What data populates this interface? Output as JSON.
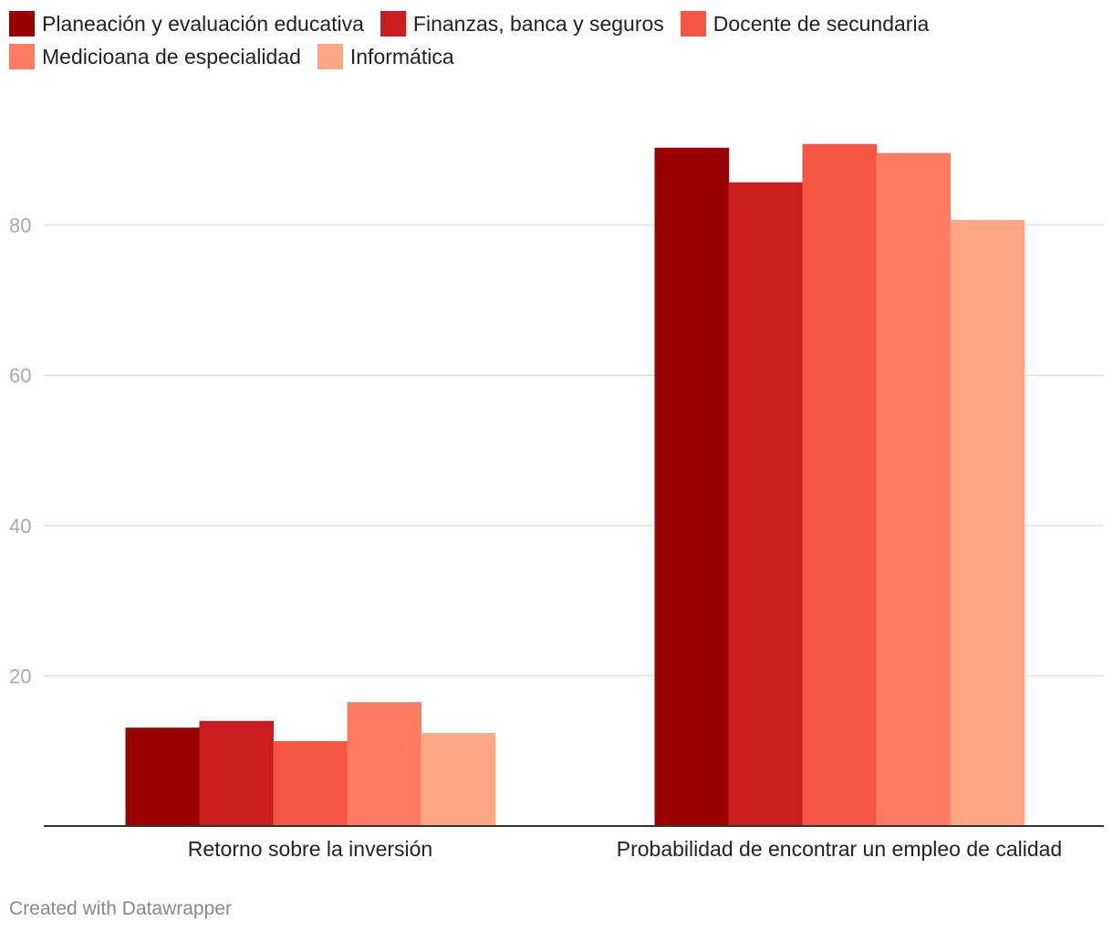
{
  "chart_data": {
    "type": "bar",
    "categories": [
      "Retorno sobre la inversión",
      "Probabilidad de encontrar un empleo de calidad"
    ],
    "series": [
      {
        "name": "Planeación y evaluación educativa",
        "color": "#990000",
        "values": [
          13.1,
          90.3
        ]
      },
      {
        "name": "Finanzas, banca y seguros",
        "color": "#c91d1e",
        "values": [
          14.0,
          85.7
        ]
      },
      {
        "name": "Docente de secundaria",
        "color": "#f75544",
        "values": [
          11.3,
          90.8
        ]
      },
      {
        "name": "Medicioana de especialidad",
        "color": "#ff7b61",
        "values": [
          16.5,
          89.6
        ]
      },
      {
        "name": "Informática",
        "color": "#ffa887",
        "values": [
          12.4,
          80.7
        ]
      }
    ],
    "yticks": [
      20,
      40,
      60,
      80
    ],
    "ylim": [
      0,
      100
    ],
    "grid": true,
    "legend": "top-left"
  },
  "credit": "Created with Datawrapper"
}
